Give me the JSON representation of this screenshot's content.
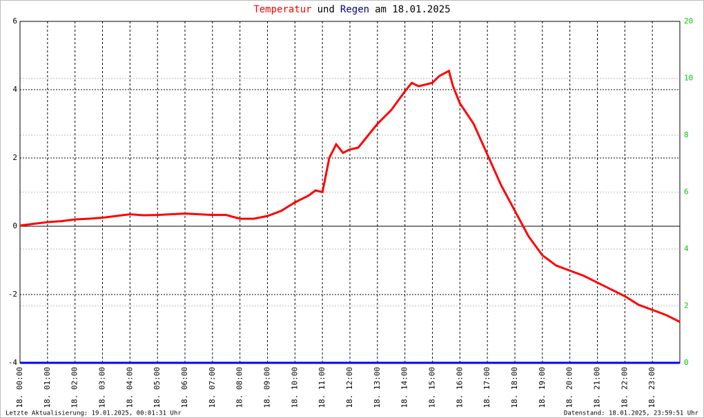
{
  "chart_data": {
    "type": "line",
    "title_parts": [
      {
        "text": "Temperatur",
        "color": "#ff0000"
      },
      {
        "text": "und",
        "color": "#000000"
      },
      {
        "text": "Regen",
        "color": "#000080"
      },
      {
        "text": "am 18.01.2025",
        "color": "#000000"
      }
    ],
    "xlim": [
      0,
      24
    ],
    "xticks": [
      {
        "value": 0,
        "label": "18. 00:00"
      },
      {
        "value": 1,
        "label": "18. 01:00"
      },
      {
        "value": 2,
        "label": "18. 02:00"
      },
      {
        "value": 3,
        "label": "18. 03:00"
      },
      {
        "value": 4,
        "label": "18. 04:00"
      },
      {
        "value": 5,
        "label": "18. 05:00"
      },
      {
        "value": 6,
        "label": "18. 06:00"
      },
      {
        "value": 7,
        "label": "18. 07:00"
      },
      {
        "value": 8,
        "label": "18. 08:00"
      },
      {
        "value": 9,
        "label": "18. 09:00"
      },
      {
        "value": 10,
        "label": "18. 10:00"
      },
      {
        "value": 11,
        "label": "18. 11:00"
      },
      {
        "value": 12,
        "label": "18. 12:00"
      },
      {
        "value": 13,
        "label": "18. 13:00"
      },
      {
        "value": 14,
        "label": "18. 14:00"
      },
      {
        "value": 15,
        "label": "18. 15:00"
      },
      {
        "value": 16,
        "label": "18. 16:00"
      },
      {
        "value": 17,
        "label": "18. 17:00"
      },
      {
        "value": 18,
        "label": "18. 18:00"
      },
      {
        "value": 19,
        "label": "18. 19:00"
      },
      {
        "value": 20,
        "label": "18. 20:00"
      },
      {
        "value": 21,
        "label": "18. 21:00"
      },
      {
        "value": 22,
        "label": "18. 22:00"
      },
      {
        "value": 23,
        "label": "18. 23:00"
      }
    ],
    "ylim": [
      -4,
      6
    ],
    "yticks": [
      -4,
      -2,
      0,
      2,
      4,
      6
    ],
    "y2lim": [
      0,
      12
    ],
    "y2ticks": [
      0,
      2,
      4,
      6,
      8,
      10
    ],
    "y2_top_label": "20",
    "y2_tick_color": "#00cc00",
    "grid": true,
    "series": [
      {
        "name": "Temperatur",
        "color": "#ff0000",
        "axis": "y",
        "x": [
          0,
          0.5,
          1,
          1.5,
          2,
          2.5,
          3,
          3.5,
          4,
          4.5,
          5,
          5.5,
          6,
          6.5,
          7,
          7.5,
          8,
          8.5,
          9,
          9.5,
          10,
          10.5,
          10.75,
          11,
          11.25,
          11.5,
          11.75,
          12,
          12.3,
          12.5,
          13,
          13.5,
          14,
          14.25,
          14.5,
          15,
          15.25,
          15.6,
          15.75,
          16,
          16.5,
          17,
          17.5,
          18,
          18.5,
          19,
          19.5,
          20,
          20.5,
          21,
          21.5,
          22,
          22.5,
          23,
          23.5,
          24
        ],
        "values": [
          0.02,
          0.07,
          0.12,
          0.15,
          0.2,
          0.22,
          0.25,
          0.3,
          0.35,
          0.32,
          0.33,
          0.35,
          0.37,
          0.35,
          0.33,
          0.33,
          0.22,
          0.22,
          0.3,
          0.45,
          0.7,
          0.9,
          1.05,
          1.0,
          2.0,
          2.4,
          2.15,
          2.25,
          2.3,
          2.5,
          3.0,
          3.4,
          3.95,
          4.2,
          4.1,
          4.2,
          4.4,
          4.55,
          4.1,
          3.6,
          3.0,
          2.1,
          1.2,
          0.45,
          -0.3,
          -0.85,
          -1.15,
          -1.3,
          -1.45,
          -1.65,
          -1.85,
          -2.05,
          -2.3,
          -2.45,
          -2.6,
          -2.8
        ]
      },
      {
        "name": "Regen",
        "color": "#0000ff",
        "axis": "y2",
        "x": [
          0,
          24
        ],
        "values": [
          0,
          0
        ]
      }
    ],
    "footer_left": "Letzte Aktualisierung: 19.01.2025, 00:01:31 Uhr",
    "footer_right": "Datenstand: 18.01.2025, 23:59:51 Uhr"
  }
}
